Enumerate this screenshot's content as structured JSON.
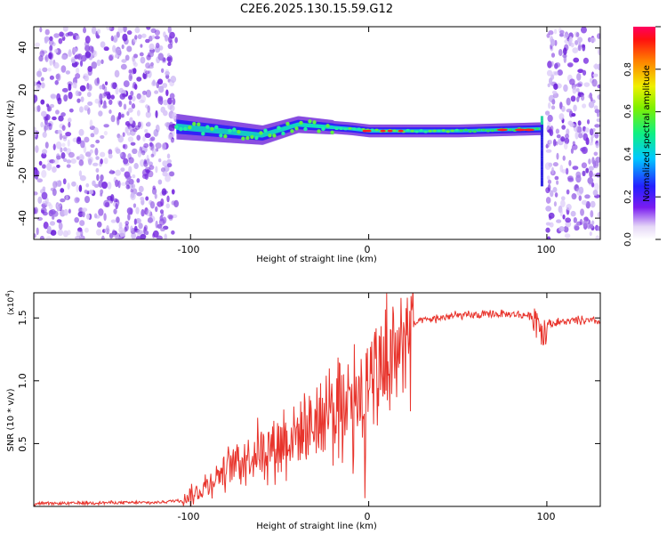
{
  "figure_title": "C2E6.2025.130.15.59.G12",
  "colors": {
    "snr_line": "#e8342c",
    "axis": "#000000"
  },
  "chart_data": [
    {
      "type": "heatmap",
      "title": "C2E6.2025.130.15.59.G12",
      "xlabel": "Height of straight line (km)",
      "ylabel": "Frequency (Hz)",
      "xlim": [
        -188,
        130
      ],
      "ylim": [
        -50,
        50
      ],
      "x_ticks": [
        "-100",
        "0",
        "100"
      ],
      "y_ticks": [
        "40",
        "20",
        "0",
        "-20",
        "-40"
      ],
      "colorbar": {
        "label": "Normalized spectral amplitude",
        "range": [
          0,
          1
        ],
        "ticks": [
          "0.0",
          "0.2",
          "0.4",
          "0.6",
          "0.8"
        ]
      },
      "regions": [
        {
          "x_range": [
            -188,
            -108
          ],
          "description": "broadband noise"
        },
        {
          "x_range": [
            -108,
            97
          ],
          "center_frequency": [
            [
              -108,
              3
            ],
            [
              -60,
              -1
            ],
            [
              -40,
              4
            ],
            [
              -10,
              2
            ],
            [
              0,
              1
            ],
            [
              50,
              1
            ],
            [
              95,
              2
            ]
          ],
          "description": "narrow signal band"
        },
        {
          "x_range": [
            100,
            130
          ],
          "description": "broadband noise"
        }
      ]
    },
    {
      "type": "line",
      "xlabel": "Height of straight line (km)",
      "ylabel": "SNR (10 * v/v)",
      "y_scale_label": "(x10",
      "y_scale_exp": "4",
      "y_scale_close": ")",
      "xlim": [
        -188,
        130
      ],
      "ylim": [
        0,
        1.7
      ],
      "x_ticks": [
        "-100",
        "0",
        "100"
      ],
      "y_ticks": [
        "0.5",
        "1.0",
        "1.5"
      ],
      "series": [
        {
          "x": [
            -188,
            -150,
            -120,
            -105,
            -95,
            -85,
            -75,
            -65,
            -55,
            -45,
            -35,
            -25,
            -15,
            -8,
            0,
            5,
            10,
            15,
            20,
            25,
            30,
            40,
            50,
            60,
            70,
            80,
            90,
            95,
            98,
            100,
            105,
            110,
            120,
            130
          ],
          "y": [
            0.02,
            0.03,
            0.03,
            0.05,
            0.12,
            0.25,
            0.35,
            0.42,
            0.48,
            0.55,
            0.62,
            0.72,
            0.85,
            0.95,
            0.92,
            1.05,
            1.15,
            1.25,
            1.35,
            1.45,
            1.48,
            1.5,
            1.52,
            1.52,
            1.53,
            1.53,
            1.52,
            1.5,
            1.35,
            1.45,
            1.46,
            1.47,
            1.48,
            1.47
          ]
        }
      ]
    }
  ]
}
